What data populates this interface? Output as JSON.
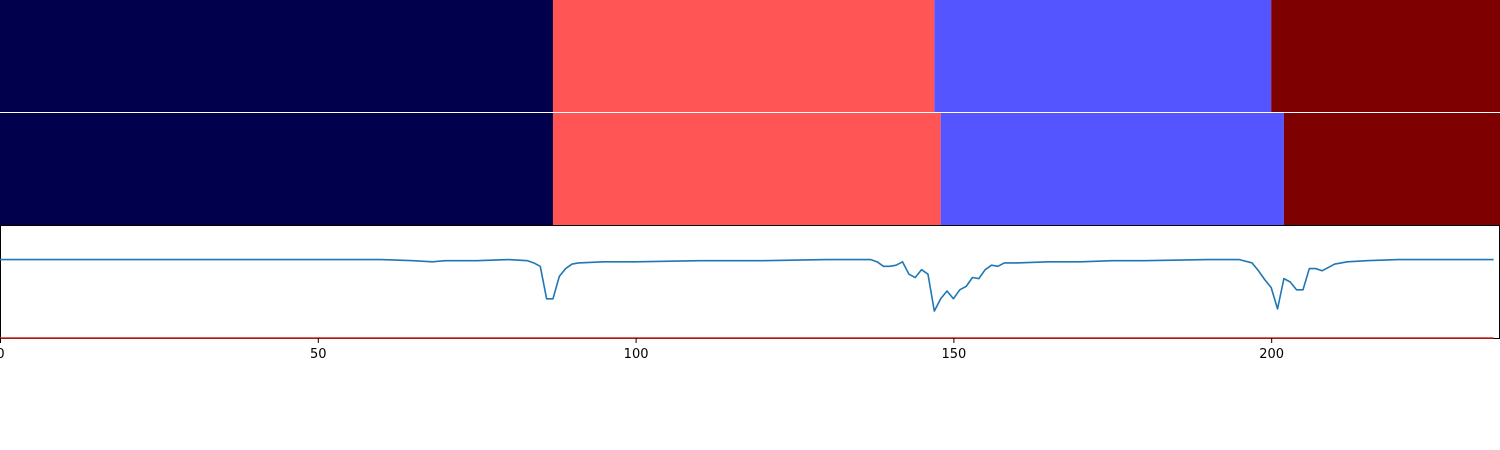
{
  "chart_data": [
    {
      "type": "segments",
      "x_range": [
        0,
        236
      ],
      "segments": [
        {
          "start": 0,
          "end": 87,
          "color": "#00004c"
        },
        {
          "start": 87,
          "end": 147,
          "color": "#ff5555"
        },
        {
          "start": 147,
          "end": 200,
          "color": "#5555ff"
        },
        {
          "start": 200,
          "end": 236,
          "color": "#7f0000"
        }
      ]
    },
    {
      "type": "segments",
      "x_range": [
        0,
        236
      ],
      "segments": [
        {
          "start": 0,
          "end": 87,
          "color": "#00004c"
        },
        {
          "start": 87,
          "end": 148,
          "color": "#ff5555"
        },
        {
          "start": 148,
          "end": 202,
          "color": "#5555ff"
        },
        {
          "start": 202,
          "end": 236,
          "color": "#7f0000"
        }
      ]
    },
    {
      "type": "line",
      "xlim": [
        0,
        236
      ],
      "ylim": [
        -0.7,
        0.3
      ],
      "x_ticks": [
        0,
        50,
        100,
        150,
        200
      ],
      "series": [
        {
          "color": "#1f77b4",
          "points": [
            [
              0,
              0.0
            ],
            [
              20,
              0.0
            ],
            [
              40,
              0.0
            ],
            [
              60,
              0.0
            ],
            [
              65,
              -0.01
            ],
            [
              68,
              -0.02
            ],
            [
              70,
              -0.01
            ],
            [
              75,
              -0.01
            ],
            [
              80,
              0.0
            ],
            [
              83,
              -0.01
            ],
            [
              84,
              -0.03
            ],
            [
              85,
              -0.06
            ],
            [
              86,
              -0.35
            ],
            [
              87,
              -0.35
            ],
            [
              88,
              -0.15
            ],
            [
              89,
              -0.08
            ],
            [
              90,
              -0.04
            ],
            [
              91,
              -0.03
            ],
            [
              95,
              -0.02
            ],
            [
              100,
              -0.02
            ],
            [
              110,
              -0.01
            ],
            [
              120,
              -0.01
            ],
            [
              130,
              0.0
            ],
            [
              137,
              0.0
            ],
            [
              138,
              -0.02
            ],
            [
              139,
              -0.06
            ],
            [
              140,
              -0.06
            ],
            [
              141,
              -0.05
            ],
            [
              142,
              -0.02
            ],
            [
              143,
              -0.13
            ],
            [
              144,
              -0.16
            ],
            [
              145,
              -0.09
            ],
            [
              146,
              -0.13
            ],
            [
              147,
              -0.46
            ],
            [
              148,
              -0.35
            ],
            [
              149,
              -0.28
            ],
            [
              150,
              -0.35
            ],
            [
              151,
              -0.27
            ],
            [
              152,
              -0.24
            ],
            [
              153,
              -0.16
            ],
            [
              154,
              -0.17
            ],
            [
              155,
              -0.09
            ],
            [
              156,
              -0.05
            ],
            [
              157,
              -0.06
            ],
            [
              158,
              -0.03
            ],
            [
              160,
              -0.03
            ],
            [
              165,
              -0.02
            ],
            [
              170,
              -0.02
            ],
            [
              175,
              -0.01
            ],
            [
              180,
              -0.01
            ],
            [
              190,
              0.0
            ],
            [
              195,
              0.0
            ],
            [
              197,
              -0.03
            ],
            [
              198,
              -0.1
            ],
            [
              199,
              -0.18
            ],
            [
              200,
              -0.25
            ],
            [
              201,
              -0.44
            ],
            [
              202,
              -0.17
            ],
            [
              203,
              -0.2
            ],
            [
              204,
              -0.27
            ],
            [
              205,
              -0.27
            ],
            [
              206,
              -0.08
            ],
            [
              207,
              -0.08
            ],
            [
              208,
              -0.1
            ],
            [
              209,
              -0.07
            ],
            [
              210,
              -0.04
            ],
            [
              212,
              -0.02
            ],
            [
              215,
              -0.01
            ],
            [
              220,
              0.0
            ],
            [
              225,
              0.0
            ],
            [
              230,
              0.0
            ],
            [
              235,
              0.0
            ]
          ]
        },
        {
          "color": "#d62728",
          "points": [
            [
              0,
              -0.7
            ],
            [
              235,
              -0.7
            ]
          ]
        }
      ]
    }
  ]
}
